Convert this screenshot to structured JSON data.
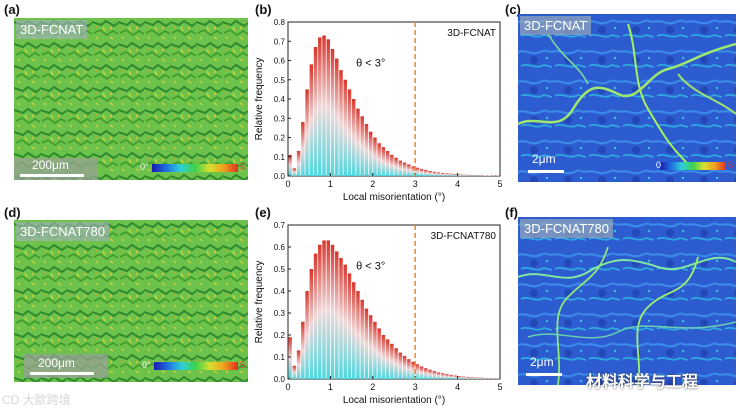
{
  "panels": {
    "a": {
      "label": "(a)",
      "sample": "3D-FCNAT",
      "scale": "200μm",
      "cbar_min": "0°",
      "cbar_max": "5"
    },
    "b": {
      "label": "(b)"
    },
    "c": {
      "label": "(c)",
      "sample": "3D-FCNAT",
      "scale": "2μm",
      "cbar_min": "0",
      "cbar_max": "5"
    },
    "d": {
      "label": "(d)",
      "sample": "3D-FCNAT780",
      "scale": "200μm",
      "cbar_min": "0°",
      "cbar_max": "5"
    },
    "e": {
      "label": "(e)"
    },
    "f": {
      "label": "(f)",
      "sample": "3D-FCNAT780",
      "scale": "2μm"
    }
  },
  "watermark": "CD 大歐跨境",
  "brand": "材料科学与工程",
  "chart_data": [
    {
      "type": "bar",
      "panel": "b",
      "legend": "3D-FCNAT",
      "annotation": "θ < 3°",
      "xlabel": "Local misorientation (°)",
      "ylabel": "Relative frequency",
      "xlim": [
        0,
        5
      ],
      "ylim": [
        0,
        0.8
      ],
      "xticks": [
        "0",
        "1",
        "2",
        "3",
        "4",
        "5"
      ],
      "yticks": [
        "0.0",
        "0.1",
        "0.2",
        "0.3",
        "0.4",
        "0.5",
        "0.6",
        "0.7",
        "0.8"
      ],
      "threshold": 3,
      "x": [
        0.05,
        0.15,
        0.25,
        0.35,
        0.45,
        0.55,
        0.65,
        0.75,
        0.85,
        0.95,
        1.05,
        1.15,
        1.25,
        1.35,
        1.45,
        1.55,
        1.65,
        1.75,
        1.85,
        1.95,
        2.05,
        2.15,
        2.25,
        2.35,
        2.45,
        2.55,
        2.65,
        2.75,
        2.85,
        2.95,
        3.05,
        3.15,
        3.25,
        3.35,
        3.45,
        3.55,
        3.65,
        3.75,
        3.85,
        3.95,
        4.05,
        4.15,
        4.25,
        4.35,
        4.45,
        4.55,
        4.65,
        4.75,
        4.85,
        4.95
      ],
      "values": [
        0.11,
        0.04,
        0.13,
        0.28,
        0.45,
        0.58,
        0.67,
        0.72,
        0.73,
        0.71,
        0.66,
        0.61,
        0.55,
        0.5,
        0.45,
        0.4,
        0.35,
        0.31,
        0.27,
        0.23,
        0.2,
        0.17,
        0.15,
        0.13,
        0.11,
        0.095,
        0.08,
        0.07,
        0.06,
        0.05,
        0.043,
        0.037,
        0.031,
        0.026,
        0.022,
        0.019,
        0.016,
        0.014,
        0.012,
        0.01,
        0.008,
        0.007,
        0.006,
        0.005,
        0.004,
        0.004,
        0.003,
        0.003,
        0.002,
        0.002
      ]
    },
    {
      "type": "bar",
      "panel": "e",
      "legend": "3D-FCNAT780",
      "annotation": "θ < 3°",
      "xlabel": "Local misorientation (°)",
      "ylabel": "Relative frequency",
      "xlim": [
        0,
        5
      ],
      "ylim": [
        0,
        0.7
      ],
      "xticks": [
        "0",
        "1",
        "2",
        "3",
        "4",
        "5"
      ],
      "yticks": [
        "0.0",
        "0.1",
        "0.2",
        "0.3",
        "0.4",
        "0.5",
        "0.6",
        "0.7"
      ],
      "threshold": 3,
      "x": [
        0.05,
        0.15,
        0.25,
        0.35,
        0.45,
        0.55,
        0.65,
        0.75,
        0.85,
        0.95,
        1.05,
        1.15,
        1.25,
        1.35,
        1.45,
        1.55,
        1.65,
        1.75,
        1.85,
        1.95,
        2.05,
        2.15,
        2.25,
        2.35,
        2.45,
        2.55,
        2.65,
        2.75,
        2.85,
        2.95,
        3.05,
        3.15,
        3.25,
        3.35,
        3.45,
        3.55,
        3.65,
        3.75,
        3.85,
        3.95,
        4.05,
        4.15,
        4.25,
        4.35,
        4.45,
        4.55,
        4.65,
        4.75,
        4.85,
        4.95
      ],
      "values": [
        0.19,
        0.06,
        0.13,
        0.26,
        0.4,
        0.5,
        0.57,
        0.61,
        0.63,
        0.63,
        0.61,
        0.58,
        0.55,
        0.52,
        0.48,
        0.44,
        0.4,
        0.36,
        0.32,
        0.29,
        0.26,
        0.23,
        0.2,
        0.18,
        0.16,
        0.14,
        0.12,
        0.105,
        0.09,
        0.078,
        0.067,
        0.057,
        0.049,
        0.042,
        0.036,
        0.03,
        0.026,
        0.022,
        0.019,
        0.016,
        0.013,
        0.011,
        0.009,
        0.008,
        0.007,
        0.006,
        0.005,
        0.004,
        0.003,
        0.003
      ]
    }
  ]
}
